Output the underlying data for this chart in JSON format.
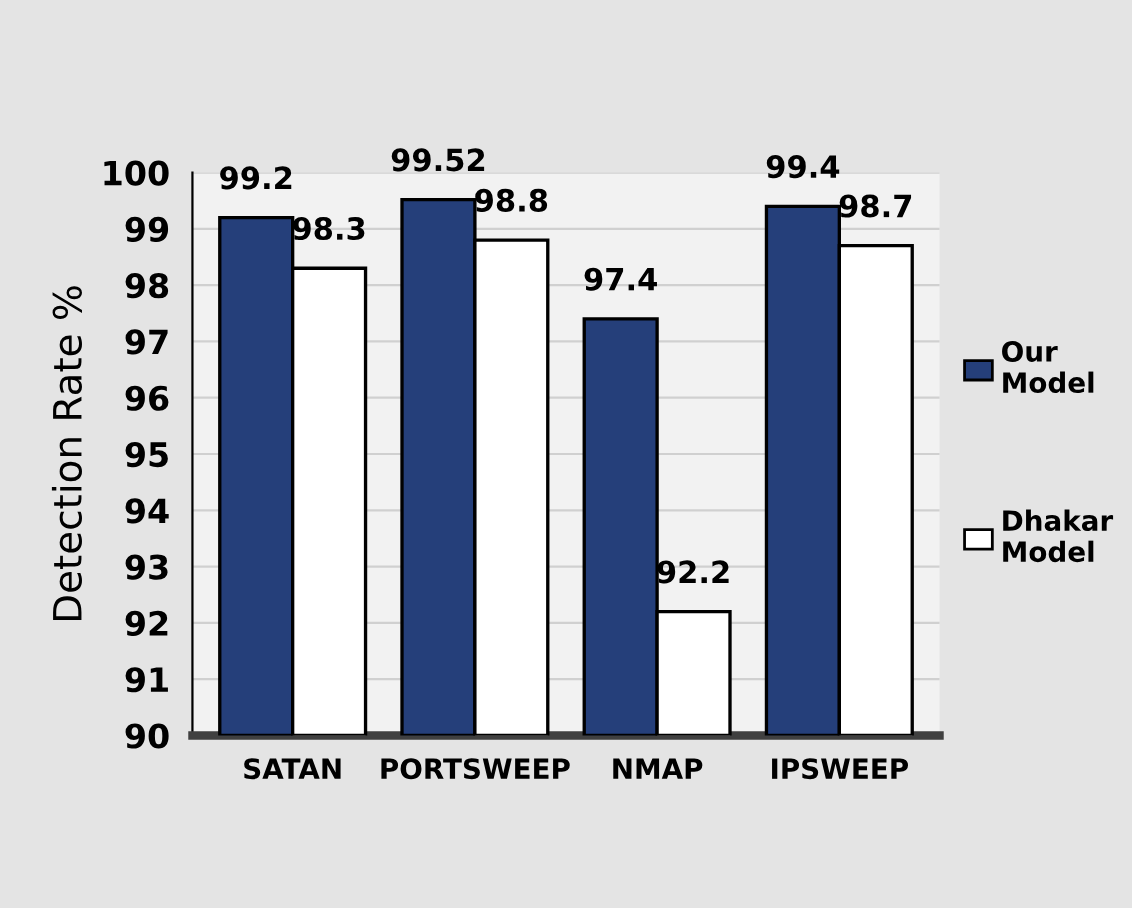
{
  "chart_data": {
    "type": "bar",
    "ylabel": "Detection Rate %",
    "categories": [
      "SATAN",
      "PORTSWEEP",
      "NMAP",
      "IPSWEEP"
    ],
    "series": [
      {
        "name": "Our Model",
        "color": "#253f7a",
        "values": [
          99.2,
          99.52,
          97.4,
          99.4
        ]
      },
      {
        "name": "Dhakar Model",
        "color": "#ffffff",
        "values": [
          98.3,
          98.8,
          92.2,
          98.7
        ]
      }
    ],
    "ylim": [
      90,
      100
    ],
    "yticks": [
      90,
      91,
      92,
      93,
      94,
      95,
      96,
      97,
      98,
      99,
      100
    ],
    "grid": "y",
    "legend": "right",
    "data_labels": true
  }
}
